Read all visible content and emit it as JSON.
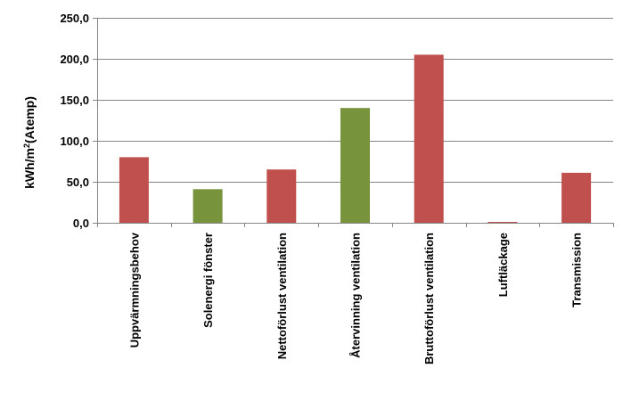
{
  "chart_data": {
    "type": "bar",
    "ylabel": "kWh/m²(Atemp)",
    "ylabel_base": "kWh/m",
    "ylabel_sup": "2",
    "ylabel_rest": "(Atemp)",
    "ylim": [
      0,
      250
    ],
    "yticks": [
      0,
      50,
      100,
      150,
      200,
      250
    ],
    "ytick_labels": [
      "0,0",
      "50,0",
      "100,0",
      "150,0",
      "200,0",
      "250,0"
    ],
    "grid": true,
    "categories": [
      "Uppvärmningsbehov",
      "Solenergi fönster",
      "Nettoförlust ventilation",
      "Återvinning ventilation",
      "Bruttoförlust ventilation",
      "Luftläckage",
      "Transmission"
    ],
    "values": [
      80,
      41,
      65,
      140,
      205,
      1,
      61
    ],
    "colors": [
      "#c0504d",
      "#77933c",
      "#c0504d",
      "#77933c",
      "#c0504d",
      "#c0504d",
      "#c0504d"
    ]
  }
}
